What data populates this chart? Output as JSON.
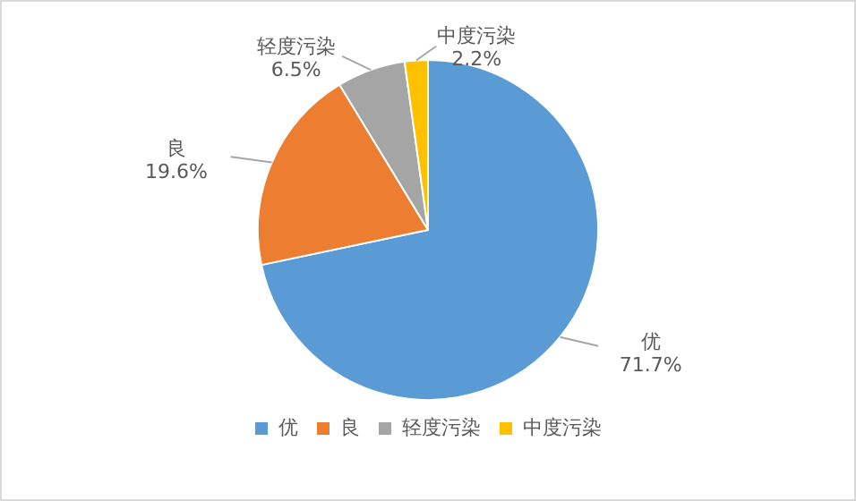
{
  "chart_data": {
    "type": "pie",
    "categories": [
      "优",
      "良",
      "轻度污染",
      "中度污染"
    ],
    "values": [
      71.7,
      19.6,
      6.5,
      2.2
    ],
    "colors": [
      "#5b9bd5",
      "#ed7d31",
      "#a5a5a5",
      "#ffc000"
    ],
    "value_labels": [
      "71.7%",
      "19.6%",
      "6.5%",
      "2.2%"
    ],
    "legend": "bottom"
  }
}
